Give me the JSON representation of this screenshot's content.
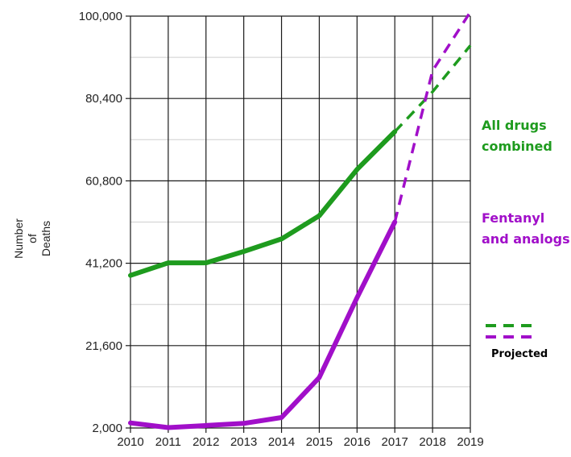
{
  "chart_data": {
    "type": "line",
    "title": "",
    "xlabel": "",
    "ylabel": "Number of Deaths",
    "ylabel_lines": [
      "Number",
      "of",
      "Deaths"
    ],
    "x": [
      2010,
      2011,
      2012,
      2013,
      2014,
      2015,
      2016,
      2017,
      2018,
      2019
    ],
    "x_tick_labels": [
      "2010",
      "2011",
      "2012",
      "2013",
      "2014",
      "2015",
      "2016",
      "2017",
      "2018",
      "2019"
    ],
    "xlim": [
      2010,
      2019
    ],
    "ylim": [
      2000,
      100000
    ],
    "y_ticks": [
      2000,
      21600,
      41200,
      60800,
      80400,
      100000
    ],
    "y_tick_labels": [
      "2,000",
      "21,600",
      "41,200",
      "60,800",
      "80,400",
      "100,000"
    ],
    "grid": true,
    "series": [
      {
        "name": "All drugs combined",
        "label_lines": [
          "All drugs",
          "combined"
        ],
        "color": "#1e9b1e",
        "x": [
          2010,
          2011,
          2012,
          2013,
          2014,
          2015,
          2016,
          2017
        ],
        "values": [
          38300,
          41300,
          41300,
          44000,
          47000,
          52500,
          63500,
          72500
        ],
        "projected": {
          "x": [
            2017,
            2018,
            2019
          ],
          "values": [
            72500,
            82000,
            93000
          ]
        }
      },
      {
        "name": "Fentanyl and analogs",
        "label_lines": [
          "Fentanyl",
          "and analogs"
        ],
        "color": "#a10fc9",
        "x": [
          2010,
          2011,
          2012,
          2013,
          2014,
          2015,
          2016,
          2017
        ],
        "values": [
          3200,
          2100,
          2600,
          3100,
          4500,
          14000,
          33000,
          51000
        ],
        "projected": {
          "x": [
            2017,
            2018,
            2019
          ],
          "values": [
            51000,
            87000,
            101000
          ]
        }
      }
    ],
    "legend": {
      "label": "Projected",
      "placement": "right"
    }
  }
}
